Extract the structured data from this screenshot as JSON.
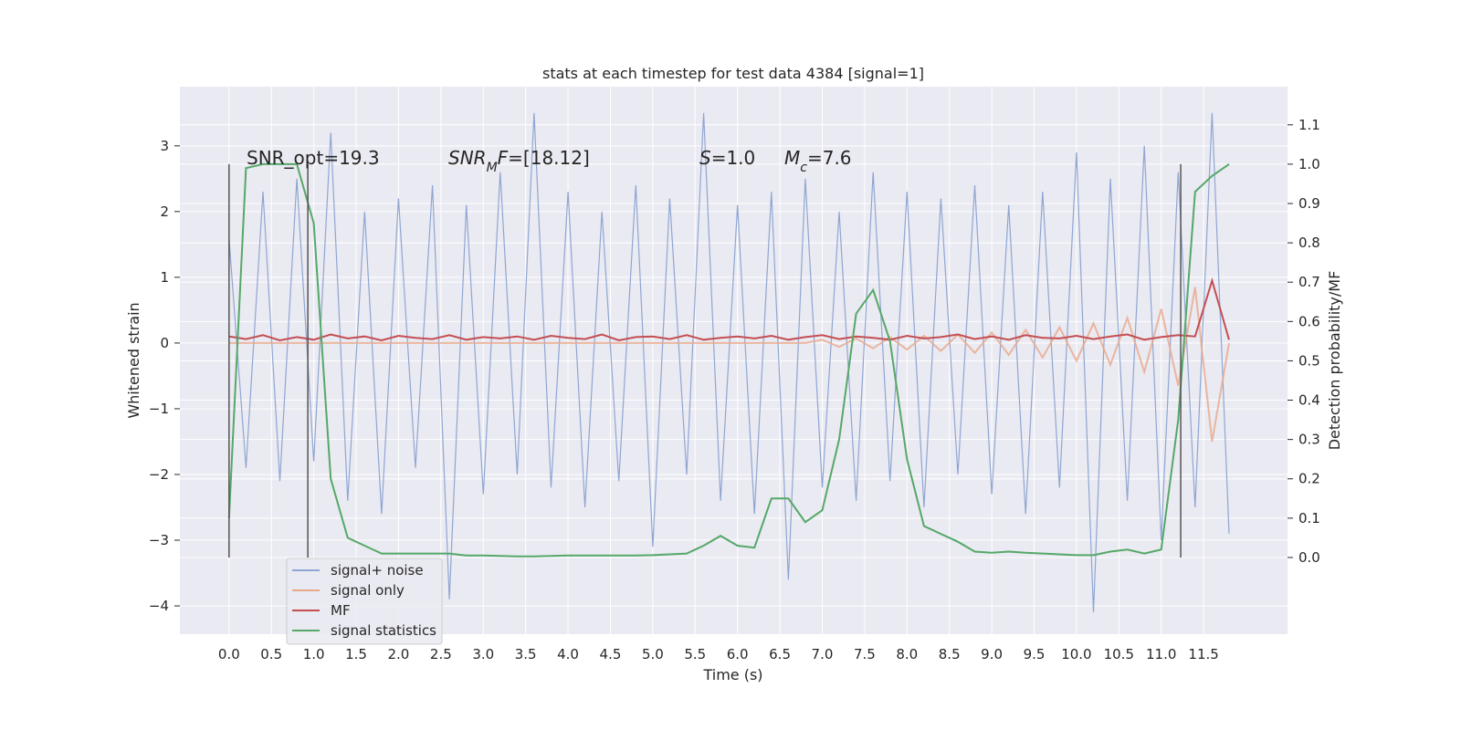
{
  "chart_data": {
    "type": "line",
    "title": "stats at each timestep for test data 4384 [signal=1]",
    "xlabel": "Time (s)",
    "ylabel": "Whitened strain",
    "y2label": "Detection probability/MF",
    "xlim": [
      -0.58,
      12.49
    ],
    "ylim": [
      -4.43,
      3.9
    ],
    "y2lim": [
      -0.195,
      1.197
    ],
    "xticks": [
      {
        "value": 0,
        "label": "0.0"
      },
      0.5,
      {
        "value": 1,
        "label": "1.0"
      },
      1.5,
      {
        "value": 2,
        "label": "2.0"
      },
      2.5,
      {
        "value": 3,
        "label": "3.0"
      },
      3.5,
      {
        "value": 4,
        "label": "4.0"
      },
      4.5,
      {
        "value": 5,
        "label": "5.0"
      },
      5.5,
      {
        "value": 6,
        "label": "6.0"
      },
      6.5,
      {
        "value": 7,
        "label": "7.0"
      },
      7.5,
      {
        "value": 8,
        "label": "8.0"
      },
      8.5,
      {
        "value": 9,
        "label": "9.0"
      },
      9.5,
      {
        "value": 10,
        "label": "10.0"
      },
      10.5,
      {
        "value": 11,
        "label": "11.0"
      },
      11.5
    ],
    "yticks": [
      {
        "value": -4,
        "label": "−4"
      },
      {
        "value": -3,
        "label": "−3"
      },
      {
        "value": -2,
        "label": "−2"
      },
      {
        "value": -1,
        "label": "−1"
      },
      0,
      1,
      2,
      3
    ],
    "y2ticks": [
      {
        "value": 0,
        "label": "0.0"
      },
      0.1,
      0.2,
      0.3,
      0.4,
      0.5,
      0.6,
      0.7,
      0.8,
      0.9,
      {
        "value": 1,
        "label": "1.0"
      },
      1.1
    ],
    "grid": true,
    "legend": "lower left",
    "vlines": [
      0,
      0.93,
      11.23
    ],
    "vline_span": [
      0,
      1
    ],
    "annotations": [
      [
        {
          "text": "SNR_opt=19.3"
        }
      ],
      [
        {
          "text": "SNR",
          "style": "italic"
        },
        {
          "text": "M",
          "style": "italic",
          "sub": true
        },
        {
          "text": "F",
          "style": "italic"
        },
        {
          "text": "=[18.12]"
        }
      ],
      [
        {
          "text": "S",
          "style": "italic"
        },
        {
          "text": "=1.0"
        }
      ],
      [
        {
          "text": "M",
          "style": "italic"
        },
        {
          "text": "c",
          "style": "italic",
          "sub": true
        },
        {
          "text": "=7.6"
        }
      ]
    ],
    "x": [
      0,
      0.2,
      0.4,
      0.6,
      0.8,
      1.0,
      1.2,
      1.4,
      1.6,
      1.8,
      2.0,
      2.2,
      2.4,
      2.6,
      2.8,
      3.0,
      3.2,
      3.4,
      3.6,
      3.8,
      4.0,
      4.2,
      4.4,
      4.6,
      4.8,
      5.0,
      5.2,
      5.4,
      5.6,
      5.8,
      6.0,
      6.2,
      6.4,
      6.6,
      6.8,
      7.0,
      7.2,
      7.4,
      7.6,
      7.8,
      8.0,
      8.2,
      8.4,
      8.6,
      8.8,
      9.0,
      9.2,
      9.4,
      9.6,
      9.8,
      10.0,
      10.2,
      10.4,
      10.6,
      10.8,
      11.0,
      11.2,
      11.4,
      11.6,
      11.8
    ],
    "series": [
      {
        "name": "signal+ noise",
        "color": "#8fa6d2",
        "values": [
          1.6,
          -1.9,
          2.3,
          -2.1,
          2.5,
          -1.8,
          3.2,
          -2.4,
          2.0,
          -2.6,
          2.2,
          -1.9,
          2.4,
          -3.9,
          2.1,
          -2.3,
          2.6,
          -2.0,
          3.5,
          -2.2,
          2.3,
          -2.5,
          2.0,
          -2.1,
          2.4,
          -3.1,
          2.2,
          -2.0,
          3.5,
          -2.4,
          2.1,
          -2.6,
          2.3,
          -3.6,
          2.5,
          -2.2,
          2.0,
          -2.4,
          2.6,
          -2.1,
          2.3,
          -2.5,
          2.2,
          -2.0,
          2.4,
          -2.3,
          2.1,
          -2.6,
          2.3,
          -2.2,
          2.9,
          -4.1,
          2.5,
          -2.4,
          3.0,
          -3.0,
          2.6,
          -2.5,
          3.5,
          -2.9
        ]
      },
      {
        "name": "signal only",
        "color": "#e8a88a",
        "values": [
          0,
          0,
          0,
          0,
          0,
          0,
          0,
          0,
          0,
          0,
          0,
          0,
          0,
          0,
          0,
          0,
          0,
          0,
          0,
          0,
          0,
          0,
          0,
          0,
          0,
          0,
          0,
          0,
          0,
          0,
          0,
          0,
          0,
          0,
          0,
          0.05,
          -0.06,
          0.07,
          -0.08,
          0.09,
          -0.1,
          0.11,
          -0.12,
          0.13,
          -0.15,
          0.16,
          -0.18,
          0.2,
          -0.22,
          0.24,
          -0.27,
          0.3,
          -0.33,
          0.38,
          -0.44,
          0.52,
          -0.65,
          0.85,
          -1.5,
          0
        ]
      },
      {
        "name": "MF",
        "color": "#c44e52",
        "values": [
          0.1,
          0.06,
          0.12,
          0.04,
          0.09,
          0.05,
          0.13,
          0.07,
          0.1,
          0.04,
          0.11,
          0.08,
          0.06,
          0.12,
          0.05,
          0.09,
          0.07,
          0.1,
          0.05,
          0.11,
          0.08,
          0.06,
          0.13,
          0.04,
          0.09,
          0.1,
          0.06,
          0.12,
          0.05,
          0.08,
          0.1,
          0.07,
          0.11,
          0.05,
          0.09,
          0.12,
          0.06,
          0.1,
          0.08,
          0.05,
          0.11,
          0.07,
          0.09,
          0.13,
          0.06,
          0.1,
          0.05,
          0.12,
          0.08,
          0.07,
          0.11,
          0.06,
          0.1,
          0.13,
          0.05,
          0.09,
          0.12,
          0.1,
          0.95,
          0.05
        ]
      },
      {
        "name": "signal statistics",
        "color": "#55a868",
        "axis": "y2",
        "values": [
          0.1,
          0.99,
          1.0,
          1.0,
          1.0,
          0.85,
          0.2,
          0.05,
          0.03,
          0.01,
          0.01,
          0.01,
          0.01,
          0.01,
          0.005,
          0.005,
          0.004,
          0.003,
          0.003,
          0.004,
          0.005,
          0.005,
          0.005,
          0.005,
          0.005,
          0.006,
          0.008,
          0.01,
          0.03,
          0.055,
          0.03,
          0.025,
          0.15,
          0.15,
          0.09,
          0.12,
          0.3,
          0.62,
          0.68,
          0.55,
          0.25,
          0.08,
          0.06,
          0.04,
          0.015,
          0.012,
          0.015,
          0.012,
          0.01,
          0.008,
          0.006,
          0.006,
          0.015,
          0.02,
          0.01,
          0.02,
          0.35,
          0.93,
          0.97,
          1.0
        ]
      }
    ]
  }
}
